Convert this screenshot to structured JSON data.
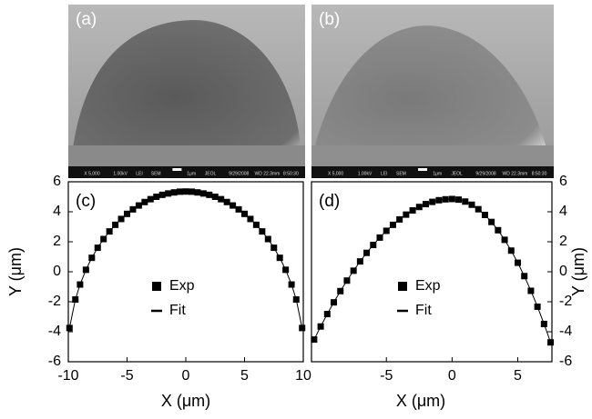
{
  "images": [
    {
      "label": "(a)",
      "bar_texts": [
        "X 5,000",
        "1.00kV",
        "LEI",
        "SEM",
        "1μm",
        "JEOL",
        "9/29/2008",
        "WD 22.3mm",
        "8:50:30"
      ]
    },
    {
      "label": "(b)",
      "bar_texts": [
        "X 5,000",
        "1.00kV",
        "LEI",
        "SEM",
        "1μm",
        "JEOL",
        "9/29/2008",
        "WD 22.3mm",
        "8:50:30"
      ]
    }
  ],
  "chart_data": [
    {
      "type": "scatter",
      "panel_label": "(c)",
      "xlabel": "X (μm)",
      "ylabel": "Y (μm)",
      "yaxis_side": "left",
      "legend": "center",
      "xlim": [
        -10,
        10
      ],
      "xticks": [
        -10,
        -5,
        0,
        5,
        10
      ],
      "ylim": [
        -6,
        6
      ],
      "yticks": [
        -6,
        -4,
        -2,
        0,
        2,
        4,
        6
      ],
      "x": [
        -9.9,
        -9.4,
        -9.0,
        -8.5,
        -8.0,
        -7.5,
        -7.0,
        -6.5,
        -6.0,
        -5.5,
        -5.0,
        -4.5,
        -4.0,
        -3.5,
        -3.0,
        -2.5,
        -2.0,
        -1.5,
        -1.0,
        -0.5,
        0,
        0.5,
        1.0,
        1.5,
        2.0,
        2.5,
        3.0,
        3.5,
        4.0,
        4.5,
        5.0,
        5.5,
        6.0,
        6.5,
        7.0,
        7.5,
        8.0,
        8.5,
        9.0,
        9.4,
        9.9
      ],
      "series": [
        {
          "name": "Exp",
          "mode": "markers",
          "color": "#000000",
          "values": [
            -3.75,
            -1.85,
            -0.85,
            0.13,
            0.93,
            1.6,
            2.18,
            2.69,
            3.13,
            3.52,
            3.86,
            4.16,
            4.42,
            4.65,
            4.84,
            5.0,
            5.13,
            5.22,
            5.29,
            5.34,
            5.35,
            5.34,
            5.29,
            5.22,
            5.13,
            5.0,
            4.84,
            4.65,
            4.42,
            4.16,
            3.86,
            3.52,
            3.13,
            2.69,
            2.18,
            1.6,
            0.93,
            0.13,
            -0.85,
            -1.85,
            -3.75
          ]
        },
        {
          "name": "Fit",
          "mode": "line",
          "color": "#000000",
          "values": [
            -3.75,
            -1.85,
            -0.85,
            0.13,
            0.93,
            1.6,
            2.18,
            2.69,
            3.13,
            3.52,
            3.86,
            4.16,
            4.42,
            4.65,
            4.84,
            5.0,
            5.13,
            5.22,
            5.29,
            5.34,
            5.35,
            5.34,
            5.29,
            5.22,
            5.13,
            5.0,
            4.84,
            4.65,
            4.42,
            4.16,
            3.86,
            3.52,
            3.13,
            2.69,
            2.18,
            1.6,
            0.93,
            0.13,
            -0.85,
            -1.85,
            -3.75
          ]
        }
      ]
    },
    {
      "type": "scatter",
      "panel_label": "(d)",
      "xlabel": "X (μm)",
      "ylabel": "Y (μm)",
      "yaxis_side": "right",
      "legend": "center",
      "xlim": [
        -10.7,
        7.6
      ],
      "xticks": [
        -5,
        0,
        5
      ],
      "ylim": [
        -6,
        6
      ],
      "yticks": [
        -6,
        -4,
        -2,
        0,
        2,
        4,
        6
      ],
      "x": [
        -10.5,
        -10,
        -9.5,
        -9,
        -8.5,
        -8,
        -7.5,
        -7,
        -6.5,
        -6,
        -5.5,
        -5,
        -4.5,
        -4,
        -3.5,
        -3,
        -2.5,
        -2,
        -1.5,
        -1,
        -0.5,
        0,
        0.5,
        1,
        1.5,
        2,
        2.5,
        3,
        3.5,
        4,
        4.5,
        5,
        5.5,
        6,
        6.5,
        7,
        7.5
      ],
      "series": [
        {
          "name": "Exp",
          "mode": "markers",
          "color": "#000000",
          "values": [
            -4.52,
            -3.65,
            -2.82,
            -2.04,
            -1.29,
            -0.59,
            0.07,
            0.69,
            1.26,
            1.79,
            2.28,
            2.73,
            3.13,
            3.49,
            3.81,
            4.09,
            4.32,
            4.51,
            4.66,
            4.77,
            4.83,
            4.85,
            4.81,
            4.68,
            4.47,
            4.17,
            3.79,
            3.32,
            2.77,
            2.13,
            1.41,
            0.6,
            -0.29,
            -1.27,
            -2.33,
            -3.48,
            -4.71
          ]
        },
        {
          "name": "Fit",
          "mode": "line",
          "color": "#000000",
          "values": [
            -4.52,
            -3.65,
            -2.82,
            -2.04,
            -1.29,
            -0.59,
            0.07,
            0.69,
            1.26,
            1.79,
            2.28,
            2.73,
            3.13,
            3.49,
            3.81,
            4.09,
            4.32,
            4.51,
            4.66,
            4.77,
            4.83,
            4.85,
            4.81,
            4.68,
            4.47,
            4.17,
            3.79,
            3.32,
            2.77,
            2.13,
            1.41,
            0.6,
            -0.29,
            -1.27,
            -2.33,
            -3.48,
            -4.71
          ]
        }
      ]
    }
  ]
}
